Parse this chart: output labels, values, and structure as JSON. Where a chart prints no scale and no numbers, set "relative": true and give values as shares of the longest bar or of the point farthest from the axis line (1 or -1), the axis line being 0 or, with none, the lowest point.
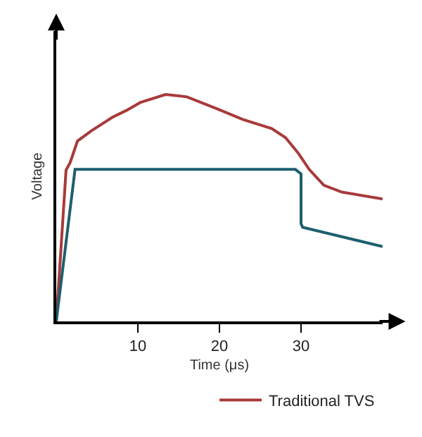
{
  "chart_data": {
    "type": "line",
    "relative": true,
    "xlabel": "Time (μs)",
    "ylabel": "Voltage",
    "xlim": [
      0,
      40
    ],
    "xticks": [
      10,
      20,
      30
    ],
    "tick_labels": "x",
    "grid": false,
    "legend": "bottom right",
    "marker": "none",
    "line_style": "solid",
    "series": [
      {
        "name": "Traditional TVS",
        "color": "#a83a3a",
        "x": [
          0,
          1.2,
          1.7,
          2.6,
          4.3,
          6.9,
          8.6,
          10.3,
          13.4,
          16.0,
          19.5,
          22.9,
          26.4,
          28.1,
          29.7,
          31,
          32.8,
          35,
          40
        ],
        "values": [
          0,
          0.667,
          0.7,
          0.795,
          0.84,
          0.9,
          0.93,
          0.965,
          1,
          0.99,
          0.94,
          0.89,
          0.85,
          0.81,
          0.74,
          0.67,
          0.6,
          0.57,
          0.54
        ]
      },
      {
        "color": "#1f5f6e",
        "x": [
          0,
          2.3,
          29.3,
          30,
          30,
          30.2,
          40
        ],
        "values": [
          0,
          0.67,
          0.67,
          0.65,
          0.43,
          0.415,
          0.33
        ]
      }
    ]
  }
}
